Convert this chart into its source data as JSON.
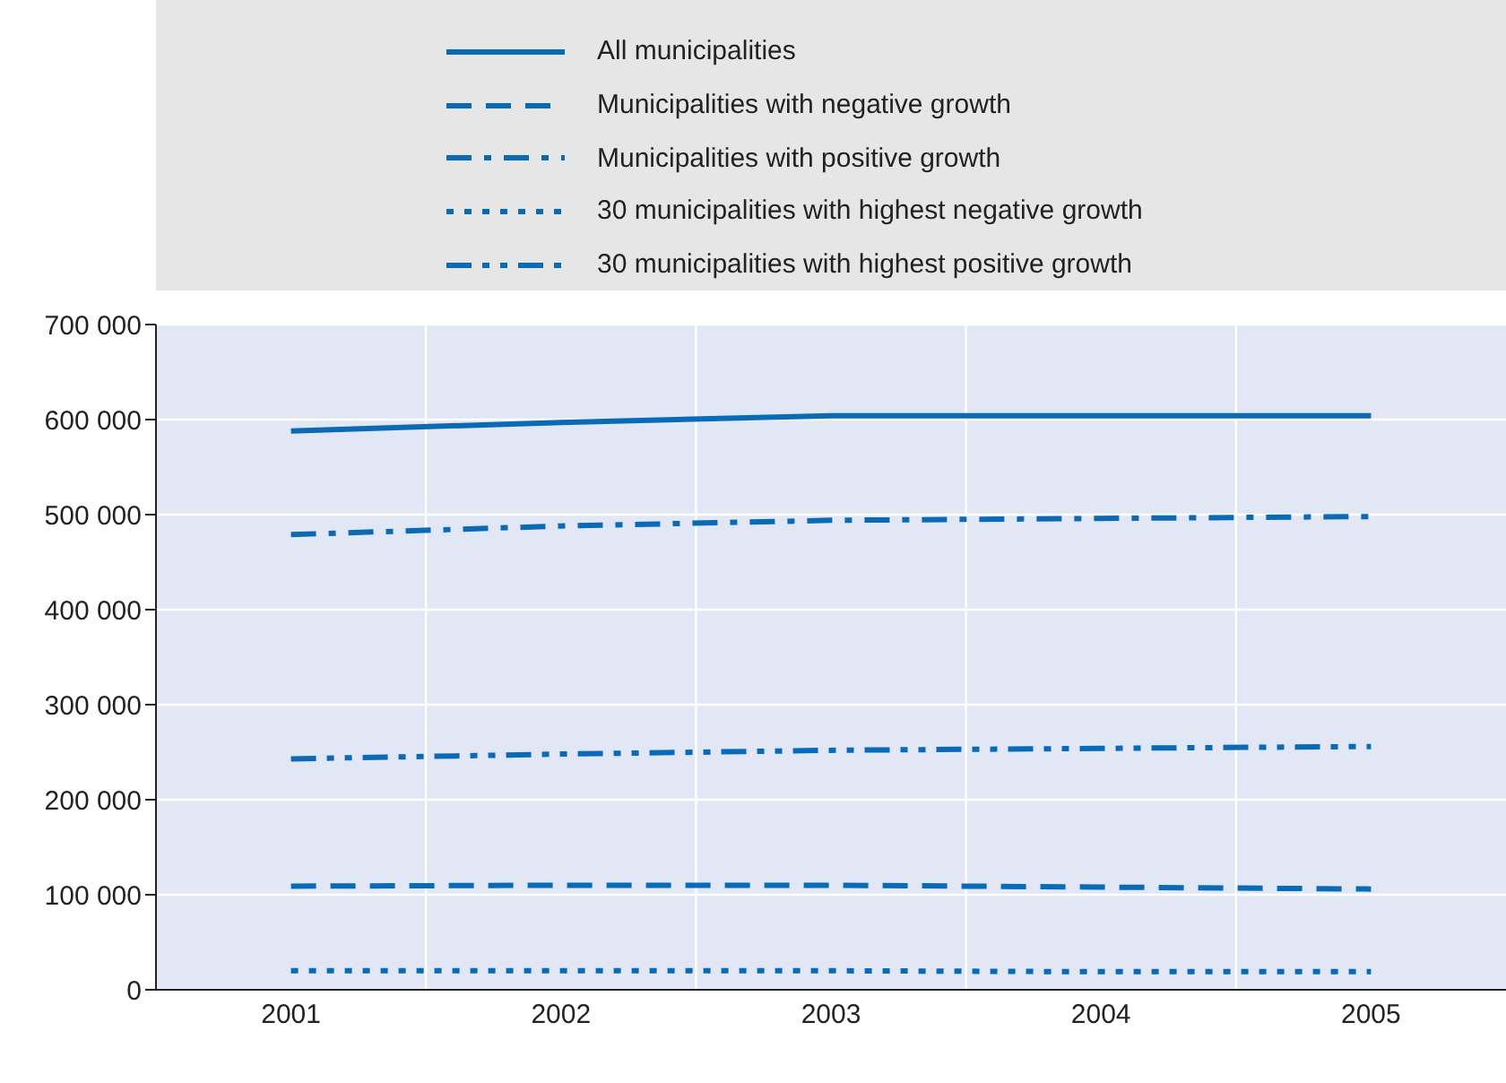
{
  "chart_data": {
    "type": "line",
    "categories": [
      "2001",
      "2002",
      "2003",
      "2004",
      "2005"
    ],
    "series": [
      {
        "name": "All municipalities",
        "color": "#0a6ab6",
        "line_style": "solid",
        "values": [
          588000,
          597000,
          604000,
          604000,
          604000
        ]
      },
      {
        "name": "Municipalities with negative growth",
        "color": "#0a6ab6",
        "line_style": "dashed",
        "values": [
          109000,
          110000,
          110000,
          108000,
          106000
        ]
      },
      {
        "name": "Municipalities with positive growth",
        "color": "#0a6ab6",
        "line_style": "dashdot",
        "values": [
          479000,
          488000,
          494000,
          496000,
          498000
        ]
      },
      {
        "name": "30 municipalities with highest negative growth",
        "color": "#0a6ab6",
        "line_style": "dotted",
        "values": [
          20000,
          20000,
          20000,
          19000,
          19000
        ]
      },
      {
        "name": "30 municipalities with highest positive growth",
        "color": "#0a6ab6",
        "line_style": "dashdotdot",
        "values": [
          243000,
          248000,
          252000,
          254000,
          256000
        ]
      }
    ],
    "ylim": [
      0,
      700000
    ],
    "yticks": [
      {
        "value": 0,
        "label": "0"
      },
      {
        "value": 100000,
        "label": "100 000"
      },
      {
        "value": 200000,
        "label": "200 000"
      },
      {
        "value": 300000,
        "label": "300 000"
      },
      {
        "value": 400000,
        "label": "400 000"
      },
      {
        "value": 500000,
        "label": "500 000"
      },
      {
        "value": 600000,
        "label": "600 000"
      },
      {
        "value": 700000,
        "label": "700 000"
      }
    ],
    "grid": true,
    "legend": "top",
    "marker": "none"
  }
}
